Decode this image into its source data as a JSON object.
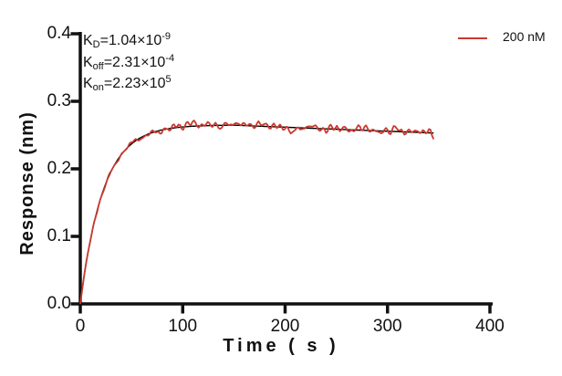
{
  "figure": {
    "background": "#ffffff",
    "y_axis": {
      "title": "Response (nm)",
      "tick_labels": [
        "0.0",
        "0.1",
        "0.2",
        "0.3",
        "0.4"
      ],
      "min": 0,
      "max": 0.4
    },
    "x_axis": {
      "title": "Time ( s )",
      "tick_labels": [
        "0",
        "100",
        "200",
        "300",
        "400"
      ],
      "min": 0,
      "max": 400
    },
    "legend": {
      "label": "200 nM",
      "color": "#c9392f"
    },
    "annotations": [
      {
        "base": "K",
        "sub": "D",
        "value": "=1.04×10",
        "exp": "-9"
      },
      {
        "base": "K",
        "sub": "off",
        "value": "=2.31×10",
        "exp": "-4"
      },
      {
        "base": "K",
        "sub": "on",
        "value": "=2.23×10",
        "exp": "5"
      }
    ]
  },
  "chart_data": {
    "type": "line",
    "title": "",
    "xlabel": "Time ( s )",
    "ylabel": "Response (nm)",
    "xlim": [
      0,
      400
    ],
    "ylim": [
      0,
      0.4
    ],
    "xticks": [
      0,
      100,
      200,
      300,
      400
    ],
    "yticks": [
      0.0,
      0.1,
      0.2,
      0.3,
      0.4
    ],
    "grid": false,
    "legend_position": "top-right",
    "series": [
      {
        "name": "200 nM",
        "role": "measured",
        "color": "#c9392f",
        "line_width": 1.8,
        "description": "noisy sensorgram trace (fit + instrument noise)"
      },
      {
        "name": "kinetic fit",
        "role": "fit",
        "color": "#000000",
        "line_width": 1.4
      }
    ],
    "kinetics": {
      "KD_label": "1.04×10⁻⁹",
      "Koff_label": "2.31×10⁻⁴",
      "Kon_label": "2.23×10⁵",
      "KD_value": 1.04e-09,
      "koff_value": 0.000231,
      "kon_value": 223000,
      "concentration_nM": 200,
      "rmax_nm": 0.265,
      "association_end_s": 150,
      "trace_end_s": 345
    },
    "fit_points": [
      [
        0,
        0
      ],
      [
        5,
        0.053
      ],
      [
        10,
        0.096
      ],
      [
        15,
        0.13
      ],
      [
        20,
        0.157
      ],
      [
        25,
        0.179
      ],
      [
        30,
        0.196
      ],
      [
        35,
        0.21
      ],
      [
        40,
        0.221
      ],
      [
        45,
        0.23
      ],
      [
        50,
        0.237
      ],
      [
        60,
        0.247
      ],
      [
        70,
        0.254
      ],
      [
        80,
        0.258
      ],
      [
        90,
        0.26
      ],
      [
        100,
        0.262
      ],
      [
        110,
        0.263
      ],
      [
        120,
        0.264
      ],
      [
        130,
        0.2642
      ],
      [
        140,
        0.2645
      ],
      [
        150,
        0.2647
      ],
      [
        175,
        0.2632
      ],
      [
        200,
        0.2617
      ],
      [
        225,
        0.2602
      ],
      [
        250,
        0.2587
      ],
      [
        275,
        0.2572
      ],
      [
        300,
        0.2557
      ],
      [
        325,
        0.2542
      ],
      [
        345,
        0.253
      ]
    ],
    "noise_amplitude_nm": 0.0045
  }
}
